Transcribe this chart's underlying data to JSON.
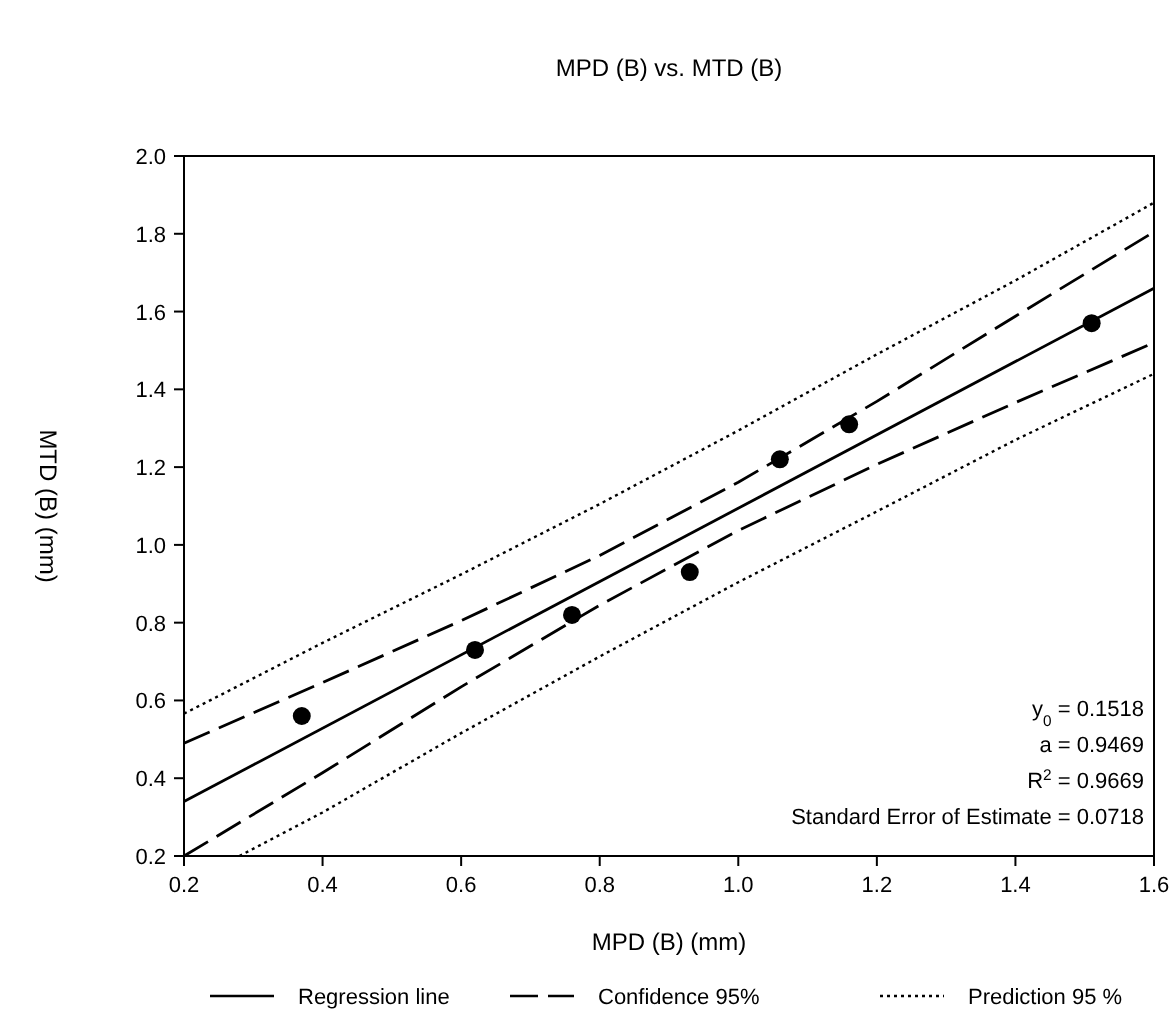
{
  "chart_data": {
    "type": "scatter",
    "title": "MPD (B) vs. MTD (B)",
    "xlabel": "MPD (B) (mm)",
    "ylabel": "MTD (B) (mm)",
    "xlim": [
      0.2,
      1.6
    ],
    "ylim": [
      0.2,
      2.0
    ],
    "xticks": [
      {
        "value": 0.2,
        "label": "0.2"
      },
      {
        "value": 0.4,
        "label": "0.4"
      },
      {
        "value": 0.6,
        "label": "0.6"
      },
      {
        "value": 0.8,
        "label": "0.8"
      },
      {
        "value": 1.0,
        "label": "1.0"
      },
      {
        "value": 1.2,
        "label": "1.2"
      },
      {
        "value": 1.4,
        "label": "1.4"
      },
      {
        "value": 1.6,
        "label": "1.6"
      }
    ],
    "yticks": [
      {
        "value": 0.2,
        "label": "0.2"
      },
      {
        "value": 0.4,
        "label": "0.4"
      },
      {
        "value": 0.6,
        "label": "0.6"
      },
      {
        "value": 0.8,
        "label": "0.8"
      },
      {
        "value": 1.0,
        "label": "1.0"
      },
      {
        "value": 1.2,
        "label": "1.2"
      },
      {
        "value": 1.4,
        "label": "1.4"
      },
      {
        "value": 1.6,
        "label": "1.6"
      },
      {
        "value": 1.8,
        "label": "1.8"
      },
      {
        "value": 2.0,
        "label": "2.0"
      }
    ],
    "grid": false,
    "legend": "bottom",
    "annotations": [
      "y$_{0}$ = 0.1518",
      "a = 0.9469",
      "R$^{2}$ = 0.9669",
      "Standard Error of Estimate = 0.0718"
    ],
    "series": [
      {
        "color": "#000000",
        "marker": "circle",
        "x": [
          0.37,
          0.62,
          0.76,
          0.93,
          1.06,
          1.16,
          1.51
        ],
        "values": [
          0.56,
          0.73,
          0.82,
          0.93,
          1.22,
          1.31,
          1.57
        ]
      },
      {
        "type": "line",
        "name": "Regression line",
        "color": "#000000",
        "line_style": "solid",
        "x": [
          0.2,
          1.6
        ],
        "values": [
          0.34,
          1.66
        ]
      },
      {
        "type": "line",
        "name": "Confidence 95%",
        "color": "#000000",
        "line_style": "dashed",
        "x": [
          0.2,
          0.4,
          0.6,
          0.8,
          1.0,
          1.2,
          1.4,
          1.6
        ],
        "values": [
          0.49,
          0.646,
          0.805,
          0.973,
          1.161,
          1.369,
          1.588,
          1.805
        ]
      },
      {
        "type": "line",
        "color": "#000000",
        "line_style": "dashed",
        "x": [
          0.2,
          0.4,
          0.6,
          0.8,
          1.0,
          1.2,
          1.4,
          1.6
        ],
        "values": [
          0.2,
          0.414,
          0.635,
          0.845,
          1.037,
          1.207,
          1.366,
          1.52
        ]
      },
      {
        "type": "line",
        "name": "Prediction 95 %",
        "color": "#000000",
        "line_style": "dotted",
        "x": [
          0.2,
          0.4,
          0.6,
          0.8,
          1.0,
          1.2,
          1.4,
          1.6
        ],
        "values": [
          0.566,
          0.748,
          0.924,
          1.105,
          1.294,
          1.49,
          1.68,
          1.88
        ]
      },
      {
        "type": "line",
        "color": "#000000",
        "line_style": "dotted",
        "x": [
          0.28,
          0.4,
          0.6,
          0.8,
          1.0,
          1.2,
          1.4,
          1.6
        ],
        "values": [
          0.2,
          0.312,
          0.516,
          0.713,
          0.904,
          1.086,
          1.27,
          1.44
        ]
      }
    ]
  }
}
